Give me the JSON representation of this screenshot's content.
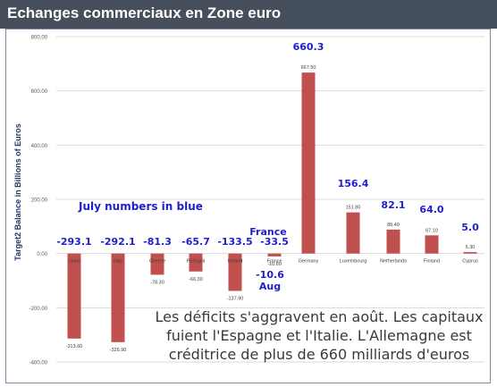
{
  "window": {
    "title": "Echanges commerciaux en Zone euro"
  },
  "chart_data": {
    "type": "bar",
    "title": "",
    "ylabel": "Target2 Balance in Billions of Euros",
    "xlabel": "",
    "ylim": [
      -400,
      800
    ],
    "yticks": [
      -400,
      -200,
      0,
      200,
      400,
      600,
      800
    ],
    "ytick_labels": [
      "-400.00",
      "-200.00",
      "0.00",
      "200.00",
      "400.00",
      "600.00",
      "800.00"
    ],
    "grid": true,
    "bar_color": "#c0504d",
    "label_color": "#1f1fcc",
    "categories": [
      "Spain",
      "Italy",
      "Greece",
      "Portugal",
      "Ireland",
      "France",
      "Germany",
      "Luxembourg",
      "Netherlands",
      "Finland",
      "Cyprus"
    ],
    "values": [
      -313.6,
      -326.9,
      -78.3,
      -66.3,
      -137.9,
      -10.6,
      667.5,
      151.8,
      88.4,
      67.1,
      5.3
    ],
    "value_labels": [
      "-313.60",
      "-326.90",
      "-78.30",
      "-66.30",
      "-137.90",
      "-10.60",
      "667.50",
      "151.80",
      "88.40",
      "67.10",
      "5.30"
    ],
    "july_values": [
      "-293.1",
      "-292.1",
      "-81.3",
      "-65.7",
      "-133.5",
      "-33.5",
      "660.3",
      "156.4",
      "82.1",
      "64.0",
      "5.0"
    ],
    "annotations": {
      "legend_note": "July numbers in blue",
      "france_label": "France",
      "aug_label": "Aug",
      "france_aug_value": "-10.6"
    }
  },
  "caption": {
    "line1": "Les déficits s'aggravent en août. Les capitaux",
    "line2": "fuient l'Espagne et l'Italie. L'Allemagne est",
    "line3": "créditrice de plus de 660 milliards d'euros"
  }
}
